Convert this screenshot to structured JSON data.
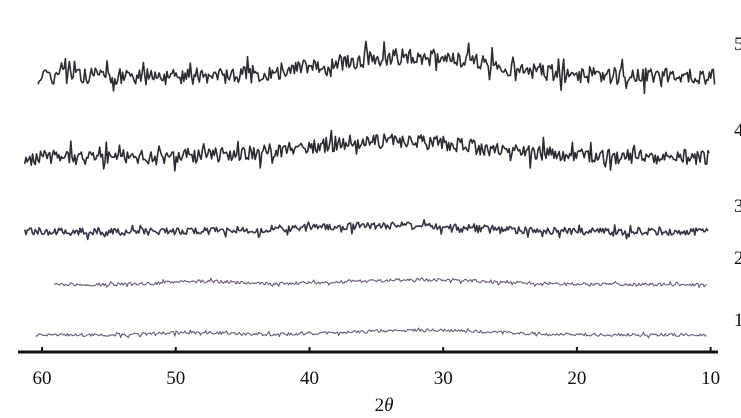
{
  "chart_data": {
    "type": "line",
    "xlabel_prefix": "2",
    "xlabel_symbol": "θ",
    "xlim": [
      61.5,
      9
    ],
    "x_ticks": [
      60,
      50,
      40,
      30,
      20,
      10
    ],
    "x_tick_labels": [
      "60",
      "50",
      "40",
      "30",
      "20",
      "10"
    ],
    "grid": false,
    "legend": "none",
    "series": [
      {
        "name": "5",
        "x_range": [
          60.3,
          9.7
        ],
        "baseline": 0.52,
        "noise": 0.16,
        "peaks": [
          {
            "center": 32.5,
            "height": 0.38,
            "width": 6.0
          }
        ],
        "color": "#2f2b33",
        "seed": 5
      },
      {
        "name": "4",
        "x_range": [
          61.3,
          10.1
        ],
        "baseline": 0.5,
        "noise": 0.15,
        "peaks": [
          {
            "center": 34.0,
            "height": 0.32,
            "width": 6.5
          }
        ],
        "color": "#2e2a33",
        "seed": 4
      },
      {
        "name": "3",
        "x_range": [
          61.3,
          10.2
        ],
        "baseline": 0.42,
        "noise": 0.1,
        "peaks": [
          {
            "center": 34.5,
            "height": 0.17,
            "width": 6.5
          }
        ],
        "color": "#3a3346",
        "seed": 3
      },
      {
        "name": "2",
        "x_range": [
          59.1,
          10.3
        ],
        "baseline": 0.32,
        "noise": 0.06,
        "peaks": [
          {
            "center": 48.0,
            "height": 0.12,
            "width": 2.5
          },
          {
            "center": 31.5,
            "height": 0.18,
            "width": 5.5
          }
        ],
        "color": "#6c5a7a",
        "seed": 2
      },
      {
        "name": "1",
        "x_range": [
          60.5,
          10.3
        ],
        "baseline": 0.3,
        "noise": 0.06,
        "peaks": [
          {
            "center": 48.5,
            "height": 0.1,
            "width": 2.5
          },
          {
            "center": 31.5,
            "height": 0.18,
            "width": 5.5
          }
        ],
        "color": "#6a5a7a",
        "seed": 1
      }
    ]
  }
}
